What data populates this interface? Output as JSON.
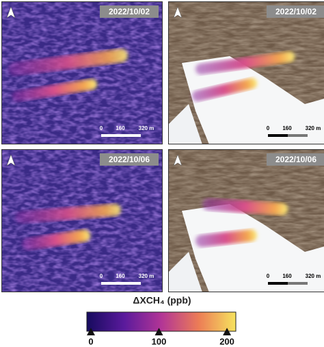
{
  "panels": [
    {
      "date": "2022/10/02",
      "scale_bar": [
        "0",
        "160",
        "320 m"
      ]
    },
    {
      "date": "2022/10/02",
      "scale_bar": [
        "0",
        "160",
        "320 m"
      ]
    },
    {
      "date": "2022/10/06",
      "scale_bar": [
        "0",
        "160",
        "320 m"
      ]
    },
    {
      "date": "2022/10/06",
      "scale_bar": [
        "0",
        "160",
        "320 m"
      ]
    }
  ],
  "colorbar": {
    "label": "ΔXCH₄ (ppb)",
    "lim": [
      -6,
      213
    ],
    "ticks": [
      0,
      100,
      200
    ]
  }
}
